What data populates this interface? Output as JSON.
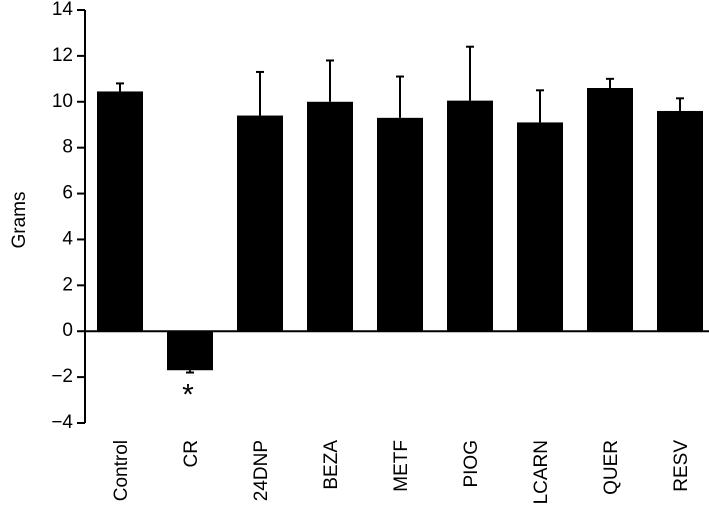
{
  "chart_data": {
    "type": "bar",
    "y_label": "Grams",
    "categories": [
      "Control",
      "CR",
      "24DNP",
      "BEZA",
      "METF",
      "PIOG",
      "LCARN",
      "QUER",
      "RESV"
    ],
    "values": [
      10.45,
      -1.7,
      9.4,
      10.0,
      9.3,
      10.05,
      9.1,
      10.6,
      9.6
    ],
    "errors": [
      0.35,
      0.1,
      1.9,
      1.8,
      1.8,
      2.35,
      1.4,
      0.4,
      0.55
    ],
    "color": "#000000",
    "annotations": [
      {
        "category": 1,
        "text": "*"
      }
    ],
    "ylim": [
      -4,
      14
    ],
    "yticks": [
      {
        "value": -4,
        "label": "−4"
      },
      {
        "value": -2,
        "label": "−2"
      },
      0,
      2,
      4,
      6,
      8,
      10,
      12,
      14
    ]
  }
}
